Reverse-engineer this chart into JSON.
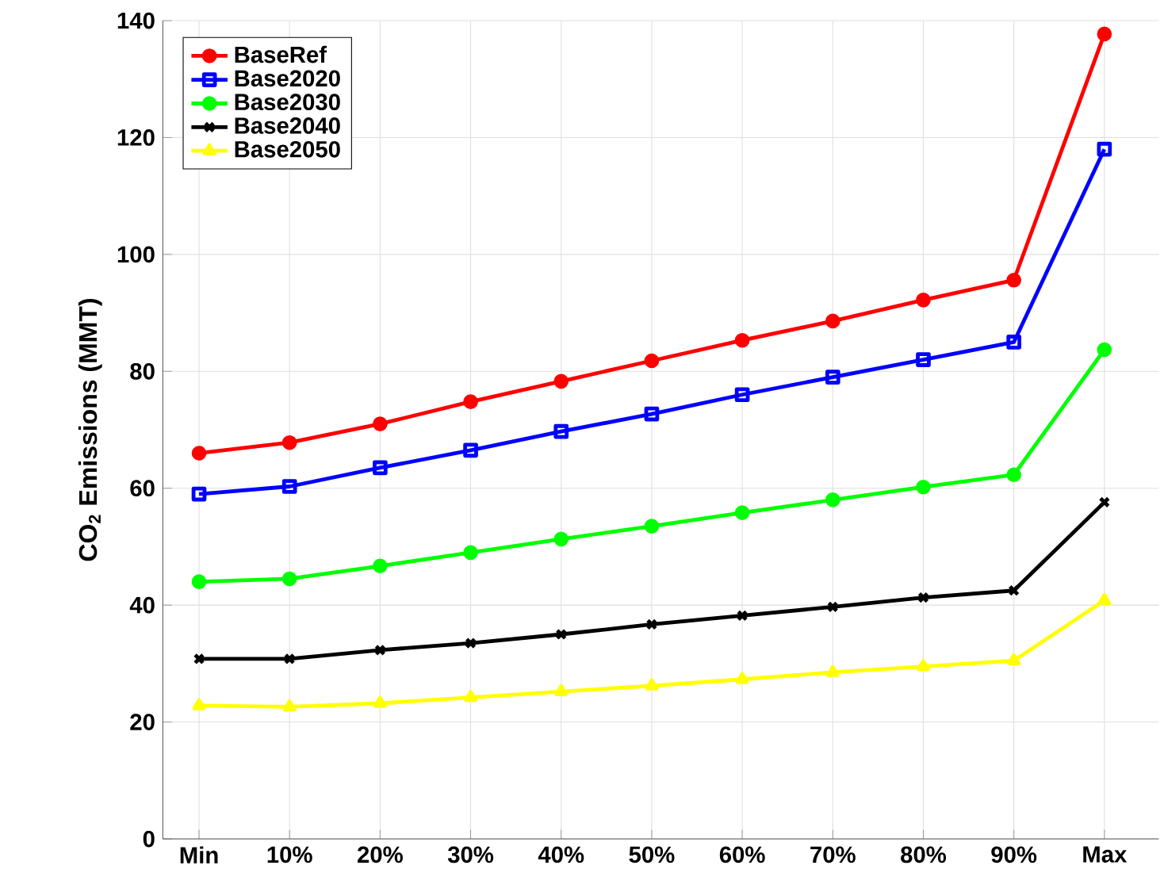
{
  "chart_data": {
    "type": "line",
    "ylabel": "CO$_{2}$ Emissions (MMT)",
    "categories": [
      "Min",
      "10%",
      "20%",
      "30%",
      "40%",
      "50%",
      "60%",
      "70%",
      "80%",
      "90%",
      "Max"
    ],
    "series": [
      {
        "name": "BaseRef",
        "color": "#ff0000",
        "marker": "circle",
        "values": [
          66,
          67.8,
          71,
          74.8,
          78.3,
          81.8,
          85.3,
          88.6,
          92.2,
          95.6,
          137.7
        ]
      },
      {
        "name": "Base2020",
        "color": "#0000ff",
        "marker": "square",
        "values": [
          59,
          60.3,
          63.5,
          66.5,
          69.7,
          72.7,
          76,
          79,
          82,
          85,
          118
        ]
      },
      {
        "name": "Base2030",
        "color": "#00ff00",
        "marker": "circle",
        "values": [
          44,
          44.5,
          46.7,
          49,
          51.3,
          53.5,
          55.8,
          58,
          60.2,
          62.3,
          83.7
        ]
      },
      {
        "name": "Base2040",
        "color": "#000000",
        "marker": "cross",
        "values": [
          30.8,
          30.8,
          32.3,
          33.5,
          35,
          36.7,
          38.2,
          39.7,
          41.3,
          42.5,
          57.6
        ]
      },
      {
        "name": "Base2050",
        "color": "#ffff00",
        "marker": "triangle",
        "values": [
          22.8,
          22.6,
          23.2,
          24.2,
          25.2,
          26.2,
          27.3,
          28.5,
          29.5,
          30.5,
          40.8
        ]
      }
    ],
    "ylim": [
      0,
      140
    ],
    "yticks": [
      0,
      20,
      40,
      60,
      80,
      100,
      120,
      140
    ],
    "grid": true,
    "legend": "top left",
    "line_style": "solid"
  }
}
